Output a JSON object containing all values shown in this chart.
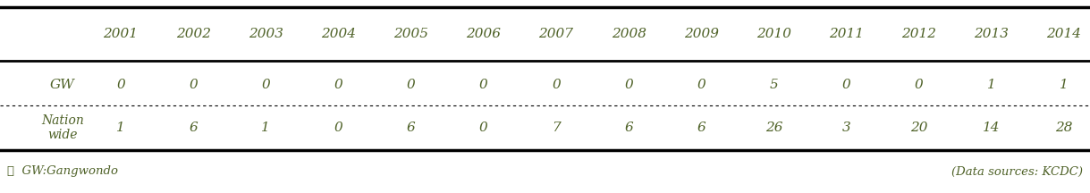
{
  "years": [
    "2001",
    "2002",
    "2003",
    "2004",
    "2005",
    "2006",
    "2007",
    "2008",
    "2009",
    "2010",
    "2011",
    "2012",
    "2013",
    "2014"
  ],
  "gw_values": [
    "0",
    "0",
    "0",
    "0",
    "0",
    "0",
    "0",
    "0",
    "0",
    "5",
    "0",
    "0",
    "1",
    "1"
  ],
  "nation_values": [
    "1",
    "6",
    "1",
    "0",
    "6",
    "0",
    "7",
    "6",
    "6",
    "26",
    "3",
    "20",
    "14",
    "28"
  ],
  "text_color": "#4f6228",
  "header_color": "#4f6228",
  "bg_color": "#ffffff",
  "footer_left": "※  GW:Gangwondo",
  "footer_right": "(Data sources: KCDC)",
  "fig_width": 12.19,
  "fig_height": 2.16,
  "dpi": 100
}
